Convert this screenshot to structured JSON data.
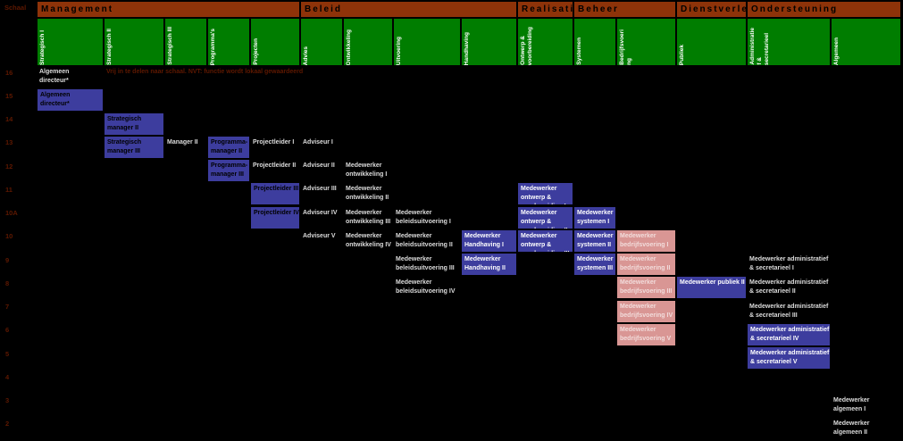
{
  "corner_label": "Schaal",
  "footnote": "Vrij in te delen naar schaal. NVT: functie wordt lokaal gewaardeerd",
  "colors": {
    "background": "#000000",
    "section_header": "#8E3309",
    "column_header": "#007D00",
    "box_blue": "#3D3D9E",
    "box_pink": "#D99694",
    "plain_text": "#DCDCDC",
    "scale_text": "#5E1800"
  },
  "scales": [
    "16",
    "15",
    "14",
    "13",
    "12",
    "11",
    "10A",
    "10",
    "9",
    "8",
    "7",
    "6",
    "5",
    "4",
    "3",
    "2"
  ],
  "sections": [
    {
      "label": "Management",
      "columns": [
        {
          "label": "Strategisch I",
          "lines": [
            "Strategisch I"
          ]
        },
        {
          "label": "Strategisch II",
          "lines": [
            "Strategisch II"
          ]
        },
        {
          "label": "Strategisch III",
          "lines": [
            "Strategisch III"
          ]
        },
        {
          "label": "Programma's",
          "lines": [
            "Programma's"
          ]
        },
        {
          "label": "Projecten",
          "lines": [
            "Projecten"
          ]
        }
      ]
    },
    {
      "label": "Beleid",
      "columns": [
        {
          "label": "Advies",
          "lines": [
            "Advies"
          ]
        },
        {
          "label": "Ontwikkeling",
          "lines": [
            "Ontwikkeling"
          ]
        },
        {
          "label": "Uitvoering",
          "lines": [
            "Uitvoering"
          ]
        },
        {
          "label": "Handhaving",
          "lines": [
            "Handhaving"
          ]
        }
      ]
    },
    {
      "label": "Realisatie",
      "columns": [
        {
          "label": "Ontwerp & voorbereiding",
          "lines": [
            "Ontwerp &",
            "voorbereiding"
          ]
        }
      ]
    },
    {
      "label": "Beheer",
      "columns": [
        {
          "label": "Systemen",
          "lines": [
            "Systemen"
          ]
        },
        {
          "label": "Bedrijfsvoering",
          "lines": [
            "Bedrijfsvoeri",
            "ng"
          ]
        }
      ]
    },
    {
      "label": "Dienstverlening",
      "columns": [
        {
          "label": "Publiek",
          "lines": [
            "Publiek"
          ]
        }
      ]
    },
    {
      "label": "Ondersteuning",
      "columns": [
        {
          "label": "Administratief & secretarieel",
          "lines": [
            "Administratie",
            "f &",
            "secretarieel"
          ]
        },
        {
          "label": "Algemeen",
          "lines": [
            "Algemeen"
          ]
        }
      ]
    }
  ],
  "cells": [
    {
      "label": "Algemeen directeur*",
      "lines": [
        "Algemeen",
        "directeur*"
      ],
      "scale": "16",
      "column": "Strategisch I",
      "variant": "text"
    },
    {
      "label": "Algemeen directeur*",
      "lines": [
        "Algemeen",
        "directeur*"
      ],
      "scale": "15",
      "column": "Strategisch I",
      "variant": "box-dark-text"
    },
    {
      "label": "Strategisch manager II",
      "lines": [
        "Strategisch",
        "manager II"
      ],
      "scale": "14",
      "column": "Strategisch II",
      "variant": "box-dark-text"
    },
    {
      "label": "Strategisch manager III",
      "lines": [
        "Strategisch",
        "manager III"
      ],
      "scale": "13",
      "column": "Strategisch II",
      "variant": "box-dark-text"
    },
    {
      "label": "Manager II",
      "lines": [
        "Manager II"
      ],
      "scale": "13",
      "column": "Strategisch III",
      "variant": "text"
    },
    {
      "label": "Programma-manager II",
      "lines": [
        "Programma-",
        "manager II"
      ],
      "scale": "13",
      "column": "Programma's",
      "variant": "box-dark-text"
    },
    {
      "label": "Projectleider I",
      "lines": [
        "Projectleider I"
      ],
      "scale": "13",
      "column": "Projecten",
      "variant": "text"
    },
    {
      "label": "Adviseur I",
      "lines": [
        "Adviseur I"
      ],
      "scale": "13",
      "column": "Advies",
      "variant": "text"
    },
    {
      "label": "Programma-manager III",
      "lines": [
        "Programma-",
        "manager III"
      ],
      "scale": "12",
      "column": "Programma's",
      "variant": "box-dark-text"
    },
    {
      "label": "Projectleider II",
      "lines": [
        "Projectleider II"
      ],
      "scale": "12",
      "column": "Projecten",
      "variant": "text"
    },
    {
      "label": "Adviseur II",
      "lines": [
        "Adviseur II"
      ],
      "scale": "12",
      "column": "Advies",
      "variant": "text"
    },
    {
      "label": "Medewerker ontwikkeling I",
      "lines": [
        "Medewerker",
        "ontwikkeling I"
      ],
      "scale": "12",
      "column": "Ontwikkeling",
      "variant": "text"
    },
    {
      "label": "Projectleider III",
      "lines": [
        "Projectleider III"
      ],
      "scale": "11",
      "column": "Projecten",
      "variant": "box-dark-text"
    },
    {
      "label": "Adviseur III",
      "lines": [
        "Adviseur III"
      ],
      "scale": "11",
      "column": "Advies",
      "variant": "text"
    },
    {
      "label": "Medewerker ontwikkeling II",
      "lines": [
        "Medewerker",
        "ontwikkeling II"
      ],
      "scale": "11",
      "column": "Ontwikkeling",
      "variant": "text"
    },
    {
      "label": "Medewerker ontwerp & voorbereiding I",
      "lines": [
        "Medewerker",
        "ontwerp &",
        "voorbereiding I"
      ],
      "scale": "11",
      "column": "Ontwerp & voorbereiding",
      "variant": "box"
    },
    {
      "label": "Projectleider IV",
      "lines": [
        "Projectleider IV"
      ],
      "scale": "10A",
      "column": "Projecten",
      "variant": "box-dark-text"
    },
    {
      "label": "Adviseur IV",
      "lines": [
        "Adviseur IV"
      ],
      "scale": "10A",
      "column": "Advies",
      "variant": "text"
    },
    {
      "label": "Medewerker ontwikkeling III",
      "lines": [
        "Medewerker",
        "ontwikkeling III"
      ],
      "scale": "10A",
      "column": "Ontwikkeling",
      "variant": "text"
    },
    {
      "label": "Medewerker beleidsuitvoering I",
      "lines": [
        "Medewerker",
        "beleidsuitvoering I"
      ],
      "scale": "10A",
      "column": "Uitvoering",
      "variant": "text"
    },
    {
      "label": "Medewerker ontwerp & voorbereiding II",
      "lines": [
        "Medewerker",
        "ontwerp &",
        "voorbereiding II"
      ],
      "scale": "10A",
      "column": "Ontwerp & voorbereiding",
      "variant": "box"
    },
    {
      "label": "Medewerker systemen I",
      "lines": [
        "Medewerker",
        "systemen I"
      ],
      "scale": "10A",
      "column": "Systemen",
      "variant": "box"
    },
    {
      "label": "Adviseur V",
      "lines": [
        "Adviseur V"
      ],
      "scale": "10",
      "column": "Advies",
      "variant": "text"
    },
    {
      "label": "Medewerker ontwikkeling IV",
      "lines": [
        "Medewerker",
        "ontwikkeling IV"
      ],
      "scale": "10",
      "column": "Ontwikkeling",
      "variant": "text"
    },
    {
      "label": "Medewerker beleidsuitvoering II",
      "lines": [
        "Medewerker",
        "beleidsuitvoering II"
      ],
      "scale": "10",
      "column": "Uitvoering",
      "variant": "text"
    },
    {
      "label": "Medewerker Handhaving I",
      "lines": [
        "Medewerker",
        "Handhaving I"
      ],
      "scale": "10",
      "column": "Handhaving",
      "variant": "box"
    },
    {
      "label": "Medewerker ontwerp & voorbereiding III",
      "lines": [
        "Medewerker",
        "ontwerp &",
        "voorbereiding III"
      ],
      "scale": "10",
      "column": "Ontwerp & voorbereiding",
      "variant": "box"
    },
    {
      "label": "Medewerker systemen II",
      "lines": [
        "Medewerker",
        "systemen II"
      ],
      "scale": "10",
      "column": "Systemen",
      "variant": "box"
    },
    {
      "label": "Medewerker bedrijfsvoering I",
      "lines": [
        "Medewerker",
        "bedrijfsvoering I"
      ],
      "scale": "10",
      "column": "Bedrijfsvoering",
      "variant": "box-pink"
    },
    {
      "label": "Medewerker beleidsuitvoering III",
      "lines": [
        "Medewerker",
        "beleidsuitvoering III"
      ],
      "scale": "9",
      "column": "Uitvoering",
      "variant": "text"
    },
    {
      "label": "Medewerker Handhaving II",
      "lines": [
        "Medewerker",
        "Handhaving II"
      ],
      "scale": "9",
      "column": "Handhaving",
      "variant": "box"
    },
    {
      "label": "Medewerker systemen III",
      "lines": [
        "Medewerker",
        "systemen III"
      ],
      "scale": "9",
      "column": "Systemen",
      "variant": "box"
    },
    {
      "label": "Medewerker bedrijfsvoering II",
      "lines": [
        "Medewerker",
        "bedrijfsvoering II"
      ],
      "scale": "9",
      "column": "Bedrijfsvoering",
      "variant": "box-pink"
    },
    {
      "label": "Medewerker administratief & secretarieel I",
      "lines": [
        "Medewerker administratief",
        "& secretarieel I"
      ],
      "scale": "9",
      "column": "Administratief & secretarieel",
      "variant": "text"
    },
    {
      "label": "Medewerker beleidsuitvoering IV",
      "lines": [
        "Medewerker",
        "beleidsuitvoering IV"
      ],
      "scale": "8",
      "column": "Uitvoering",
      "variant": "text"
    },
    {
      "label": "Medewerker bedrijfsvoering III",
      "lines": [
        "Medewerker",
        "bedrijfsvoering III"
      ],
      "scale": "8",
      "column": "Bedrijfsvoering",
      "variant": "box-pink"
    },
    {
      "label": "Medewerker publiek II",
      "lines": [
        "Medewerker publiek II"
      ],
      "scale": "8",
      "column": "Publiek",
      "variant": "box"
    },
    {
      "label": "Medewerker administratief & secretarieel II",
      "lines": [
        "Medewerker administratief",
        "& secretarieel II"
      ],
      "scale": "8",
      "column": "Administratief & secretarieel",
      "variant": "text"
    },
    {
      "label": "Medewerker bedrijfsvoering IV",
      "lines": [
        "Medewerker",
        "bedrijfsvoering IV"
      ],
      "scale": "7",
      "column": "Bedrijfsvoering",
      "variant": "box-pink"
    },
    {
      "label": "Medewerker administratief & secretarieel III",
      "lines": [
        "Medewerker administratief",
        "& secretarieel III"
      ],
      "scale": "7",
      "column": "Administratief & secretarieel",
      "variant": "text"
    },
    {
      "label": "Medewerker bedrijfsvoering V",
      "lines": [
        "Medewerker",
        "bedrijfsvoering V"
      ],
      "scale": "6",
      "column": "Bedrijfsvoering",
      "variant": "box-pink"
    },
    {
      "label": "Medewerker administratief & secretarieel IV",
      "lines": [
        "Medewerker administratief",
        "& secretarieel IV"
      ],
      "scale": "6",
      "column": "Administratief & secretarieel",
      "variant": "box"
    },
    {
      "label": "Medewerker administratief & secretarieel V",
      "lines": [
        "Medewerker administratief",
        "& secretarieel V"
      ],
      "scale": "5",
      "column": "Administratief & secretarieel",
      "variant": "box"
    },
    {
      "label": "Medewerker algemeen I",
      "lines": [
        "Medewerker",
        "algemeen I"
      ],
      "scale": "3",
      "column": "Algemeen",
      "variant": "text"
    },
    {
      "label": "Medewerker algemeen II",
      "lines": [
        "Medewerker",
        "algemeen II"
      ],
      "scale": "2",
      "column": "Algemeen",
      "variant": "text"
    }
  ]
}
